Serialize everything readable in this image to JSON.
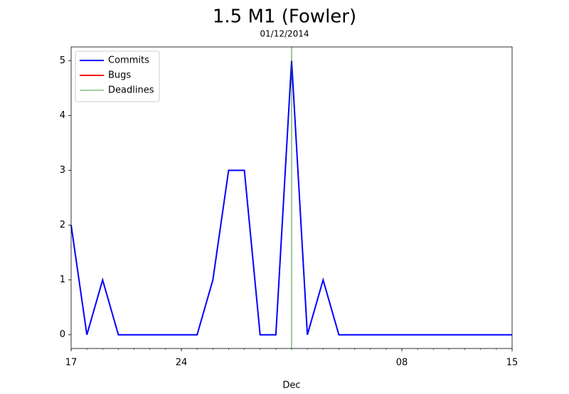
{
  "chart_data": {
    "type": "line",
    "title": "1.5 M1 (Fowler)",
    "subtitle": "01/12/2014",
    "xlabel": "Dec",
    "x": [
      "2014-11-17",
      "2014-11-18",
      "2014-11-19",
      "2014-11-20",
      "2014-11-21",
      "2014-11-22",
      "2014-11-23",
      "2014-11-24",
      "2014-11-25",
      "2014-11-26",
      "2014-11-27",
      "2014-11-28",
      "2014-11-29",
      "2014-11-30",
      "2014-12-01",
      "2014-12-02",
      "2014-12-03",
      "2014-12-04",
      "2014-12-05",
      "2014-12-06",
      "2014-12-07",
      "2014-12-08",
      "2014-12-09",
      "2014-12-10",
      "2014-12-11",
      "2014-12-12",
      "2014-12-13",
      "2014-12-14",
      "2014-12-15"
    ],
    "series": [
      {
        "name": "Commits",
        "color": "#0000ff",
        "values": [
          2,
          0,
          1,
          0,
          0,
          0,
          0,
          0,
          0,
          1,
          3,
          3,
          0,
          0,
          5,
          0,
          1,
          0,
          0,
          0,
          0,
          0,
          0,
          0,
          0,
          0,
          0,
          0,
          0
        ]
      },
      {
        "name": "Bugs",
        "color": "#ff0000",
        "values": [
          null,
          null,
          null,
          null,
          null,
          null,
          null,
          null,
          null,
          null,
          null,
          null,
          null,
          null,
          null,
          null,
          null,
          null,
          null,
          null,
          null,
          null,
          null,
          null,
          null,
          null,
          null,
          null,
          null
        ]
      }
    ],
    "vlines": [
      {
        "name": "Deadlines",
        "color": "#008000",
        "x": [
          "2014-12-01"
        ]
      }
    ],
    "xlim": [
      "2014-11-17",
      "2014-12-15"
    ],
    "xticks": [
      {
        "value": "2014-11-17",
        "label": "17"
      },
      {
        "value": "2014-11-24",
        "label": "24"
      },
      {
        "value": "2014-12-08",
        "label": "08"
      },
      {
        "value": "2014-12-15",
        "label": "15"
      }
    ],
    "ylim": [
      -0.25,
      5.25
    ],
    "yticks": [
      0,
      1,
      2,
      3,
      4,
      5
    ],
    "legend": "upper left"
  }
}
